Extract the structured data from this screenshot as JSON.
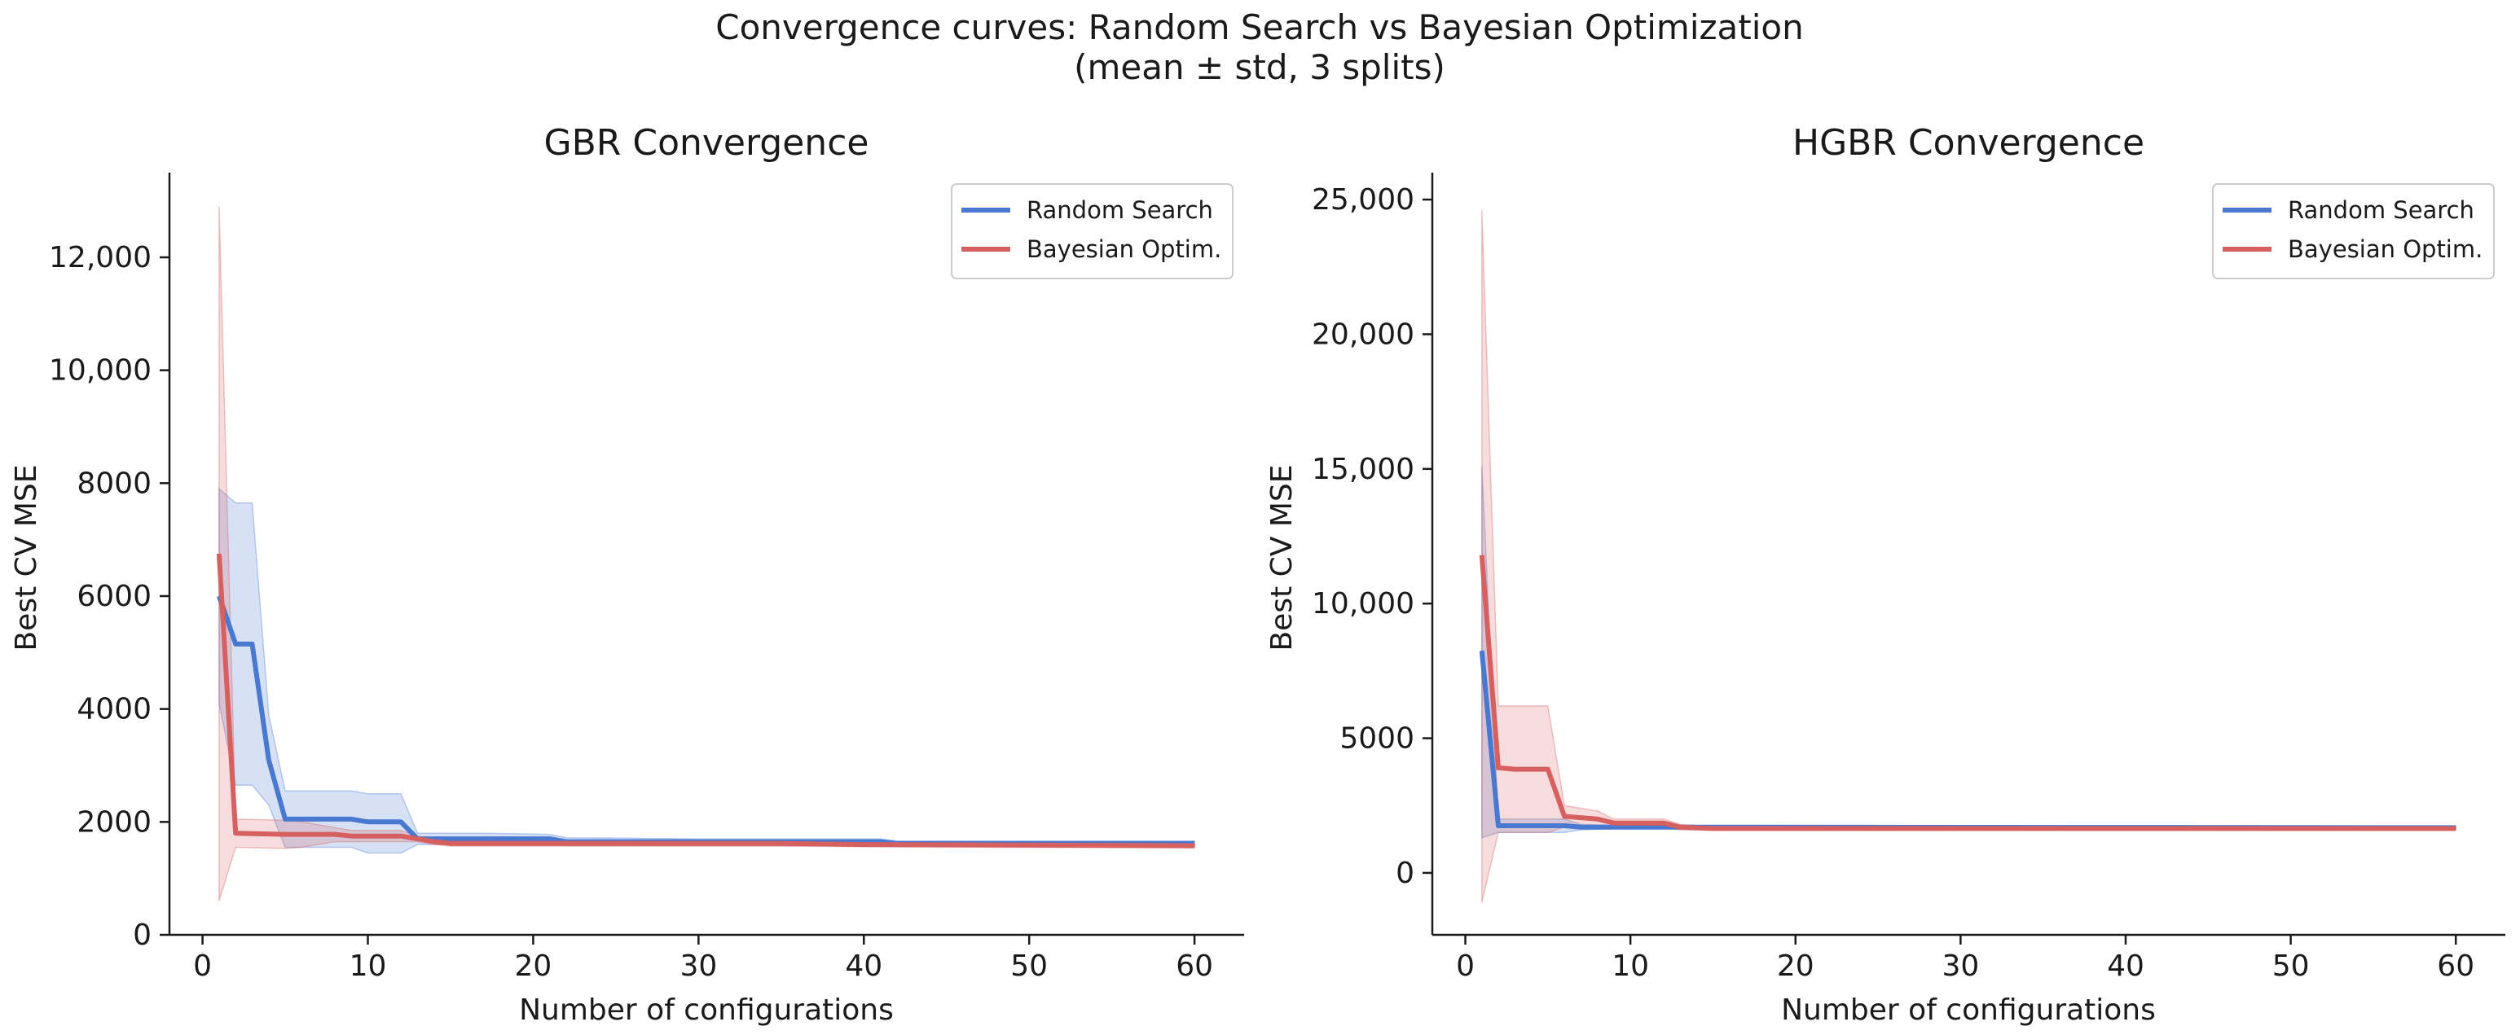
{
  "figure": {
    "title_line1": "Convergence curves: Random Search vs Bayesian Optimization",
    "title_line2": "(mean ± std, 3 splits)"
  },
  "colors": {
    "random": "#4878d0",
    "bayes": "#d65f5f",
    "axis": "#1a1a1a"
  },
  "chart_data": [
    {
      "type": "line",
      "title": "GBR Convergence",
      "xlabel": "Number of configurations",
      "ylabel": "Best CV MSE",
      "xlim": [
        -2,
        63
      ],
      "ylim": [
        0,
        13500
      ],
      "xticks": [
        0,
        10,
        20,
        30,
        40,
        50,
        60
      ],
      "xtick_labels": [
        "0",
        "10",
        "20",
        "30",
        "40",
        "50",
        "60"
      ],
      "yticks": [
        0,
        2000,
        4000,
        6000,
        8000,
        10000,
        12000
      ],
      "ytick_labels": [
        "0",
        "2000",
        "4000",
        "6000",
        "8000",
        "10,000",
        "12,000"
      ],
      "legend_position": "top-right",
      "grid": false,
      "series": [
        {
          "name": "Random Search",
          "color": "#4878d0",
          "x": [
            1,
            2,
            3,
            4,
            5,
            6,
            7,
            8,
            9,
            10,
            12,
            13,
            15,
            17,
            21,
            22,
            30,
            41,
            42,
            60
          ],
          "y": [
            6000,
            5150,
            5150,
            3100,
            2050,
            2050,
            2050,
            2050,
            2050,
            2000,
            2000,
            1700,
            1700,
            1700,
            1700,
            1650,
            1650,
            1650,
            1620,
            1620
          ],
          "upper": [
            7900,
            7650,
            7650,
            3900,
            2550,
            2550,
            2550,
            2550,
            2550,
            2500,
            2500,
            1800,
            1800,
            1800,
            1780,
            1720,
            1700,
            1700,
            1660,
            1660
          ],
          "lower": [
            4100,
            2650,
            2650,
            2300,
            1550,
            1550,
            1550,
            1550,
            1550,
            1450,
            1450,
            1600,
            1600,
            1600,
            1600,
            1580,
            1580,
            1580,
            1560,
            1560
          ]
        },
        {
          "name": "Bayesian Optim.",
          "color": "#d65f5f",
          "x": [
            1,
            2,
            5,
            6,
            7,
            8,
            9,
            12,
            13,
            14,
            15,
            20,
            35,
            40,
            60
          ],
          "y": [
            6750,
            1800,
            1780,
            1780,
            1780,
            1780,
            1750,
            1750,
            1700,
            1650,
            1620,
            1620,
            1620,
            1600,
            1580
          ],
          "upper": [
            12900,
            2050,
            2030,
            2000,
            1950,
            1900,
            1850,
            1850,
            1750,
            1700,
            1680,
            1660,
            1660,
            1640,
            1620
          ],
          "lower": [
            600,
            1550,
            1530,
            1550,
            1600,
            1650,
            1650,
            1650,
            1650,
            1600,
            1570,
            1570,
            1570,
            1560,
            1540
          ]
        }
      ]
    },
    {
      "type": "line",
      "title": "HGBR Convergence",
      "xlabel": "Number of configurations",
      "ylabel": "Best CV MSE",
      "xlim": [
        -2,
        63
      ],
      "ylim": [
        -2300,
        26000
      ],
      "xticks": [
        0,
        10,
        20,
        30,
        40,
        50,
        60
      ],
      "xtick_labels": [
        "0",
        "10",
        "20",
        "30",
        "40",
        "50",
        "60"
      ],
      "yticks": [
        0,
        5000,
        10000,
        15000,
        20000,
        25000
      ],
      "ytick_labels": [
        "0",
        "5000",
        "10,000",
        "15,000",
        "20,000",
        "25,000"
      ],
      "legend_position": "top-right",
      "grid": false,
      "series": [
        {
          "name": "Random Search",
          "color": "#4878d0",
          "x": [
            1,
            2,
            5,
            6,
            7,
            10,
            60
          ],
          "y": [
            8250,
            1750,
            1750,
            1750,
            1700,
            1700,
            1680
          ],
          "upper": [
            15100,
            2000,
            2000,
            2000,
            1800,
            1750,
            1720
          ],
          "lower": [
            1300,
            1500,
            1500,
            1500,
            1600,
            1650,
            1640
          ]
        },
        {
          "name": "Bayesian Optim.",
          "color": "#d65f5f",
          "x": [
            1,
            2,
            3,
            5,
            6,
            8,
            9,
            12,
            13,
            15,
            60
          ],
          "y": [
            11800,
            3900,
            3850,
            3850,
            2100,
            2000,
            1850,
            1850,
            1700,
            1650,
            1650
          ],
          "upper": [
            24600,
            6200,
            6200,
            6200,
            2500,
            2300,
            2000,
            2000,
            1800,
            1720,
            1720
          ],
          "lower": [
            -1100,
            1500,
            1500,
            1500,
            1700,
            1700,
            1650,
            1650,
            1600,
            1580,
            1580
          ]
        }
      ]
    }
  ]
}
